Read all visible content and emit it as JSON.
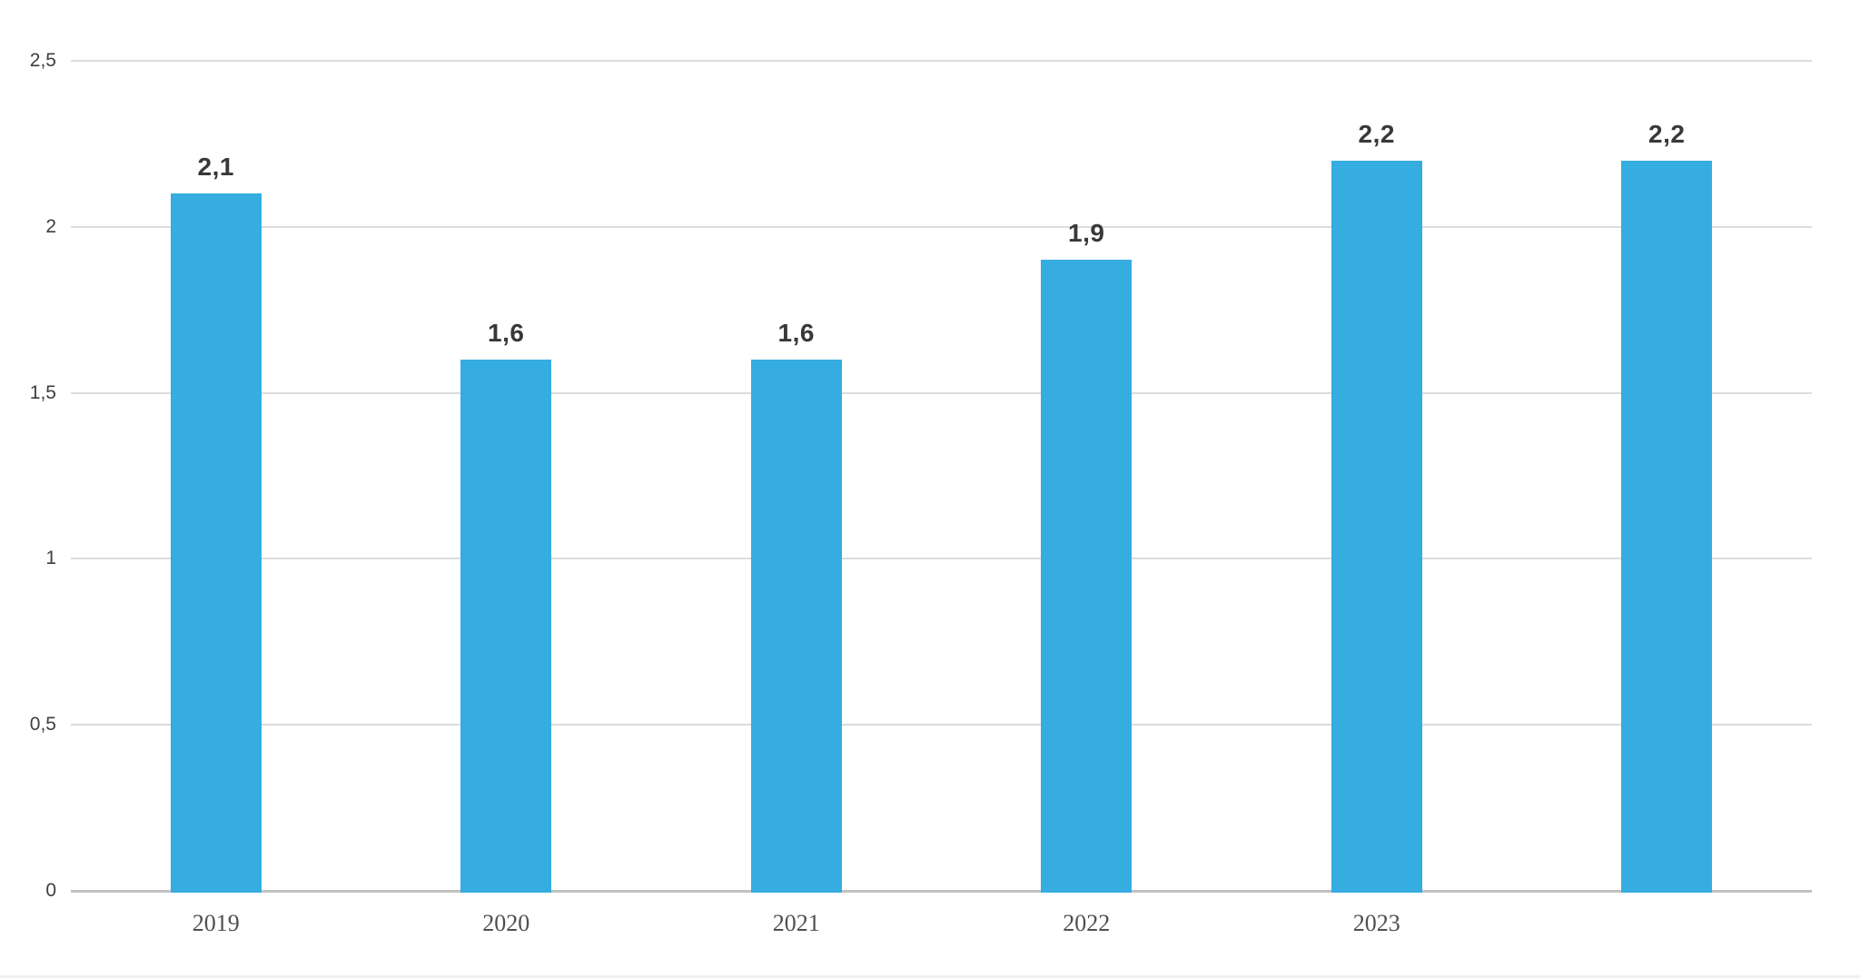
{
  "chart_data": {
    "type": "bar",
    "title": "",
    "xlabel": "",
    "ylabel": "",
    "legend": "none",
    "grid": "horizontal",
    "decimal_separator": ",",
    "ylim": [
      0,
      2.5
    ],
    "categories": [
      "2019",
      "2020",
      "2021",
      "2022",
      "2023",
      ""
    ],
    "values": [
      2.1,
      1.6,
      1.6,
      1.9,
      2.2,
      2.2
    ],
    "points": [
      {
        "category": "2019",
        "value": 2.1,
        "label": "2,1"
      },
      {
        "category": "2020",
        "value": 1.6,
        "label": "1,6"
      },
      {
        "category": "2021",
        "value": 1.6,
        "label": "1,6"
      },
      {
        "category": "2022",
        "value": 1.9,
        "label": "1,9"
      },
      {
        "category": "2023",
        "value": 2.2,
        "label": "2,2"
      },
      {
        "category": "",
        "value": 2.2,
        "label": "2,2"
      }
    ],
    "y_ticks": [
      {
        "value": 2.5,
        "label": "2,5"
      },
      {
        "value": 2.0,
        "label": "2"
      },
      {
        "value": 1.5,
        "label": "1,5"
      },
      {
        "value": 1.0,
        "label": "1"
      },
      {
        "value": 0.5,
        "label": "0,5"
      },
      {
        "value": 0.0,
        "label": "0"
      }
    ],
    "colors": {
      "bar": "#35ADE1",
      "gridline": "#DCDCDC",
      "zero_line": "#C2C2C2",
      "y_tick_text": "#3F3F3F",
      "x_tick_text": "#4F4F4F",
      "value_label_text": "#383838",
      "background": "#FFFFFF"
    }
  }
}
